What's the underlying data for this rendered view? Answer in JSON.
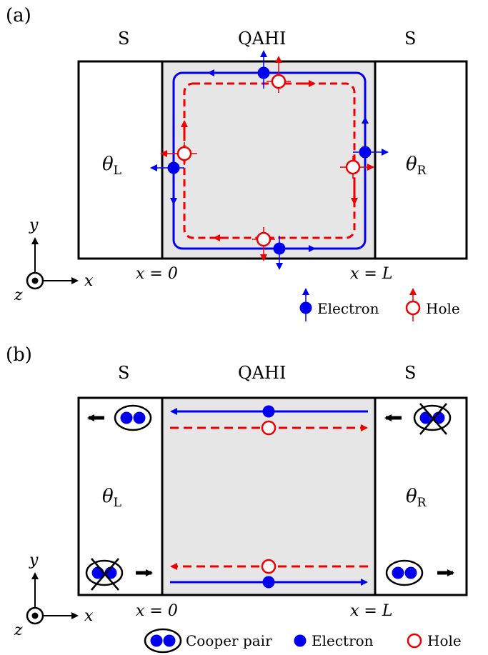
{
  "panel_a": {
    "tag": "(a)",
    "left_label": "S",
    "center_label": "QAHI",
    "right_label": "S",
    "theta_left": "θ",
    "theta_left_sub": "L",
    "theta_right": "θ",
    "theta_right_sub": "R",
    "x0_label": "x = 0",
    "xL_label": "x = L",
    "axis_y": "y",
    "axis_x": "x",
    "axis_z": "z",
    "legend_electron": "Electron",
    "legend_hole": "Hole"
  },
  "panel_b": {
    "tag": "(b)",
    "left_label": "S",
    "center_label": "QAHI",
    "right_label": "S",
    "theta_left": "θ",
    "theta_left_sub": "L",
    "theta_right": "θ",
    "theta_right_sub": "R",
    "x0_label": "x = 0",
    "xL_label": "x = L",
    "axis_y": "y",
    "axis_x": "x",
    "axis_z": "z",
    "legend_cooper": "Cooper pair",
    "legend_electron": "Electron",
    "legend_hole": "Hole"
  },
  "colors": {
    "electron": "#0000ee",
    "hole": "#ee0000",
    "qahi_fill": "#e6e6e6",
    "outline": "#000000"
  }
}
